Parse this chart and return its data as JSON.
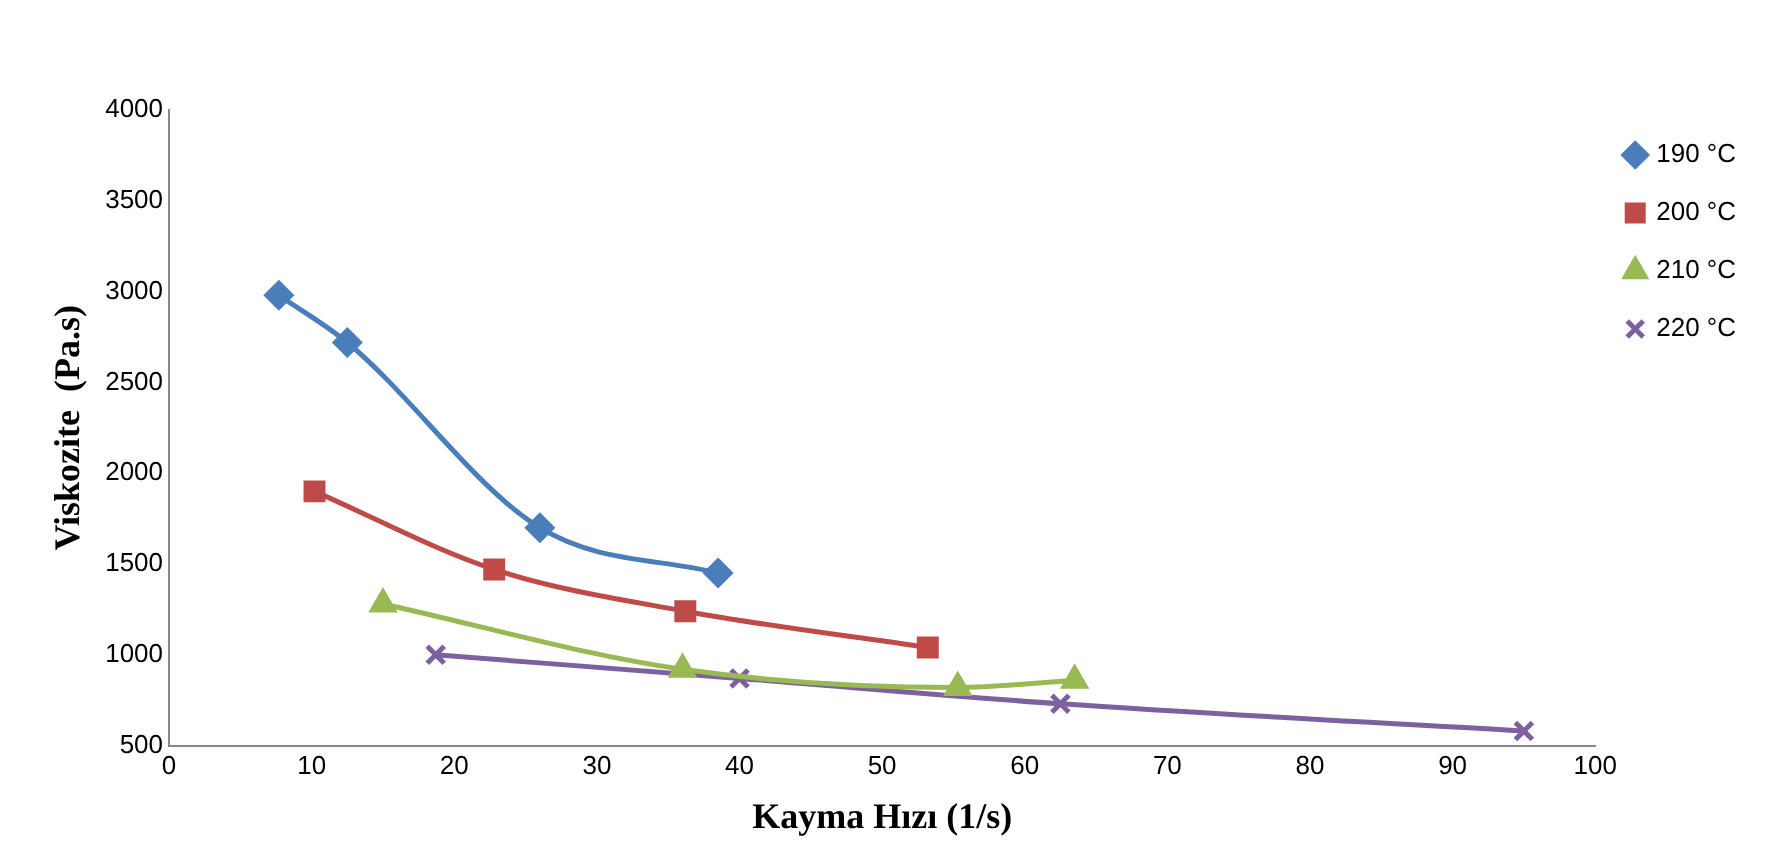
{
  "chart_data": {
    "type": "line",
    "xlabel": "Kayma Hızı (1/s)",
    "ylabel": "Viskozite  (Pa.s)",
    "xlim": [
      0,
      100
    ],
    "xticks": [
      0,
      10,
      20,
      30,
      40,
      50,
      60,
      70,
      80,
      90,
      100
    ],
    "ylim": [
      500,
      4000
    ],
    "yticks": [
      500,
      1000,
      1500,
      2000,
      2500,
      3000,
      3500,
      4000
    ],
    "grid": false,
    "legend": "top right",
    "series": [
      {
        "name": "190 °C",
        "color": "#4a7ebb",
        "marker": "diamond",
        "x": [
          7.7,
          12.5,
          26,
          38.5
        ],
        "values": [
          2980,
          2720,
          1700,
          1450
        ]
      },
      {
        "name": "200 °C",
        "color": "#be4b48",
        "marker": "square",
        "x": [
          10.2,
          22.8,
          36.2,
          53.2
        ],
        "values": [
          1900,
          1470,
          1240,
          1040
        ]
      },
      {
        "name": "210 °C",
        "color": "#98b954",
        "marker": "triangle",
        "x": [
          15,
          36,
          55.3,
          63.5
        ],
        "values": [
          1280,
          920,
          820,
          860
        ]
      },
      {
        "name": "220 °C",
        "color": "#7d60a0",
        "marker": "cross",
        "x": [
          18.7,
          40,
          62.5,
          95
        ],
        "values": [
          1000,
          870,
          730,
          580
        ]
      }
    ]
  }
}
